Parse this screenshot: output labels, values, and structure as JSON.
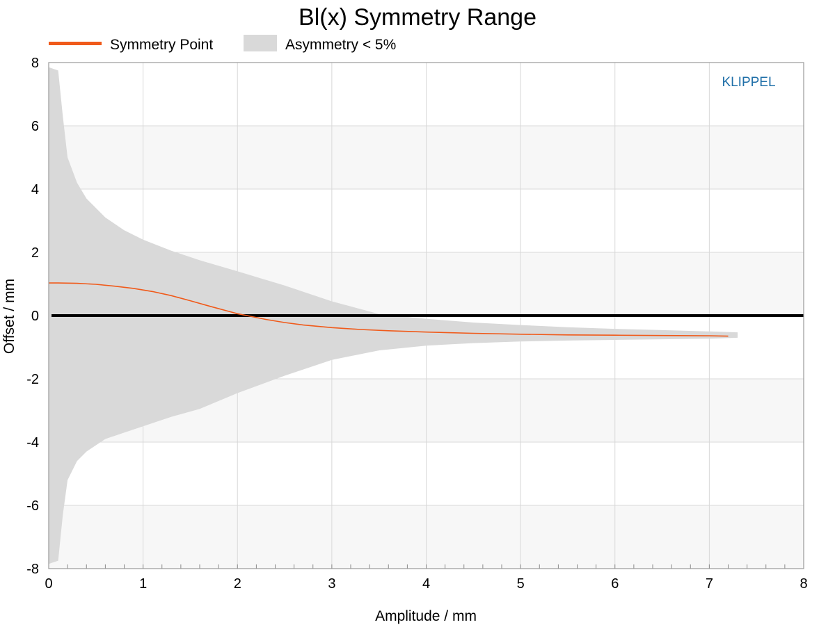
{
  "chart_data": {
    "type": "area",
    "title": "Bl(x) Symmetry Range",
    "xlabel": "Amplitude / mm",
    "ylabel": "Offset / mm",
    "xlim": [
      0,
      8
    ],
    "ylim": [
      -8,
      8
    ],
    "x_ticks": [
      "0",
      "1",
      "2",
      "3",
      "4",
      "5",
      "6",
      "7",
      "8"
    ],
    "y_ticks": [
      "8",
      "6",
      "4",
      "2",
      "0",
      "-2",
      "-4",
      "-6",
      "-8"
    ],
    "grid": true,
    "legend_position": "top-left",
    "brand": "KLIPPEL",
    "colors": {
      "symmetry_point": "#f05a1a",
      "asymmetry_band": "#d9d9d9",
      "zero_line": "#000000",
      "brand": "#1f6fa8"
    },
    "series": [
      {
        "name": "Symmetry Point",
        "kind": "line",
        "x": [
          0.0,
          0.1,
          0.3,
          0.5,
          0.7,
          0.9,
          1.1,
          1.3,
          1.5,
          1.7,
          1.9,
          2.0,
          2.1,
          2.3,
          2.5,
          2.7,
          3.0,
          3.3,
          3.6,
          4.0,
          4.5,
          5.0,
          5.5,
          6.0,
          6.5,
          7.0,
          7.2
        ],
        "y": [
          1.03,
          1.03,
          1.02,
          0.99,
          0.93,
          0.86,
          0.76,
          0.63,
          0.47,
          0.3,
          0.14,
          0.06,
          0.0,
          -0.12,
          -0.22,
          -0.3,
          -0.38,
          -0.44,
          -0.48,
          -0.52,
          -0.56,
          -0.59,
          -0.61,
          -0.62,
          -0.63,
          -0.64,
          -0.65
        ]
      },
      {
        "name": "Asymmetry < 5%",
        "kind": "band",
        "x": [
          0.0,
          0.1,
          0.15,
          0.2,
          0.3,
          0.4,
          0.6,
          0.8,
          1.0,
          1.3,
          1.6,
          2.0,
          2.5,
          3.0,
          3.5,
          4.0,
          4.5,
          5.0,
          5.5,
          6.0,
          6.5,
          7.0,
          7.3
        ],
        "upper": [
          7.85,
          7.75,
          6.3,
          5.0,
          4.2,
          3.7,
          3.1,
          2.7,
          2.4,
          2.05,
          1.75,
          1.4,
          0.95,
          0.45,
          0.05,
          -0.1,
          -0.22,
          -0.3,
          -0.37,
          -0.42,
          -0.46,
          -0.5,
          -0.53
        ],
        "lower": [
          -7.85,
          -7.75,
          -6.3,
          -5.2,
          -4.6,
          -4.3,
          -3.9,
          -3.7,
          -3.5,
          -3.2,
          -2.95,
          -2.45,
          -1.9,
          -1.4,
          -1.1,
          -0.95,
          -0.87,
          -0.82,
          -0.79,
          -0.77,
          -0.75,
          -0.73,
          -0.7
        ]
      }
    ]
  }
}
